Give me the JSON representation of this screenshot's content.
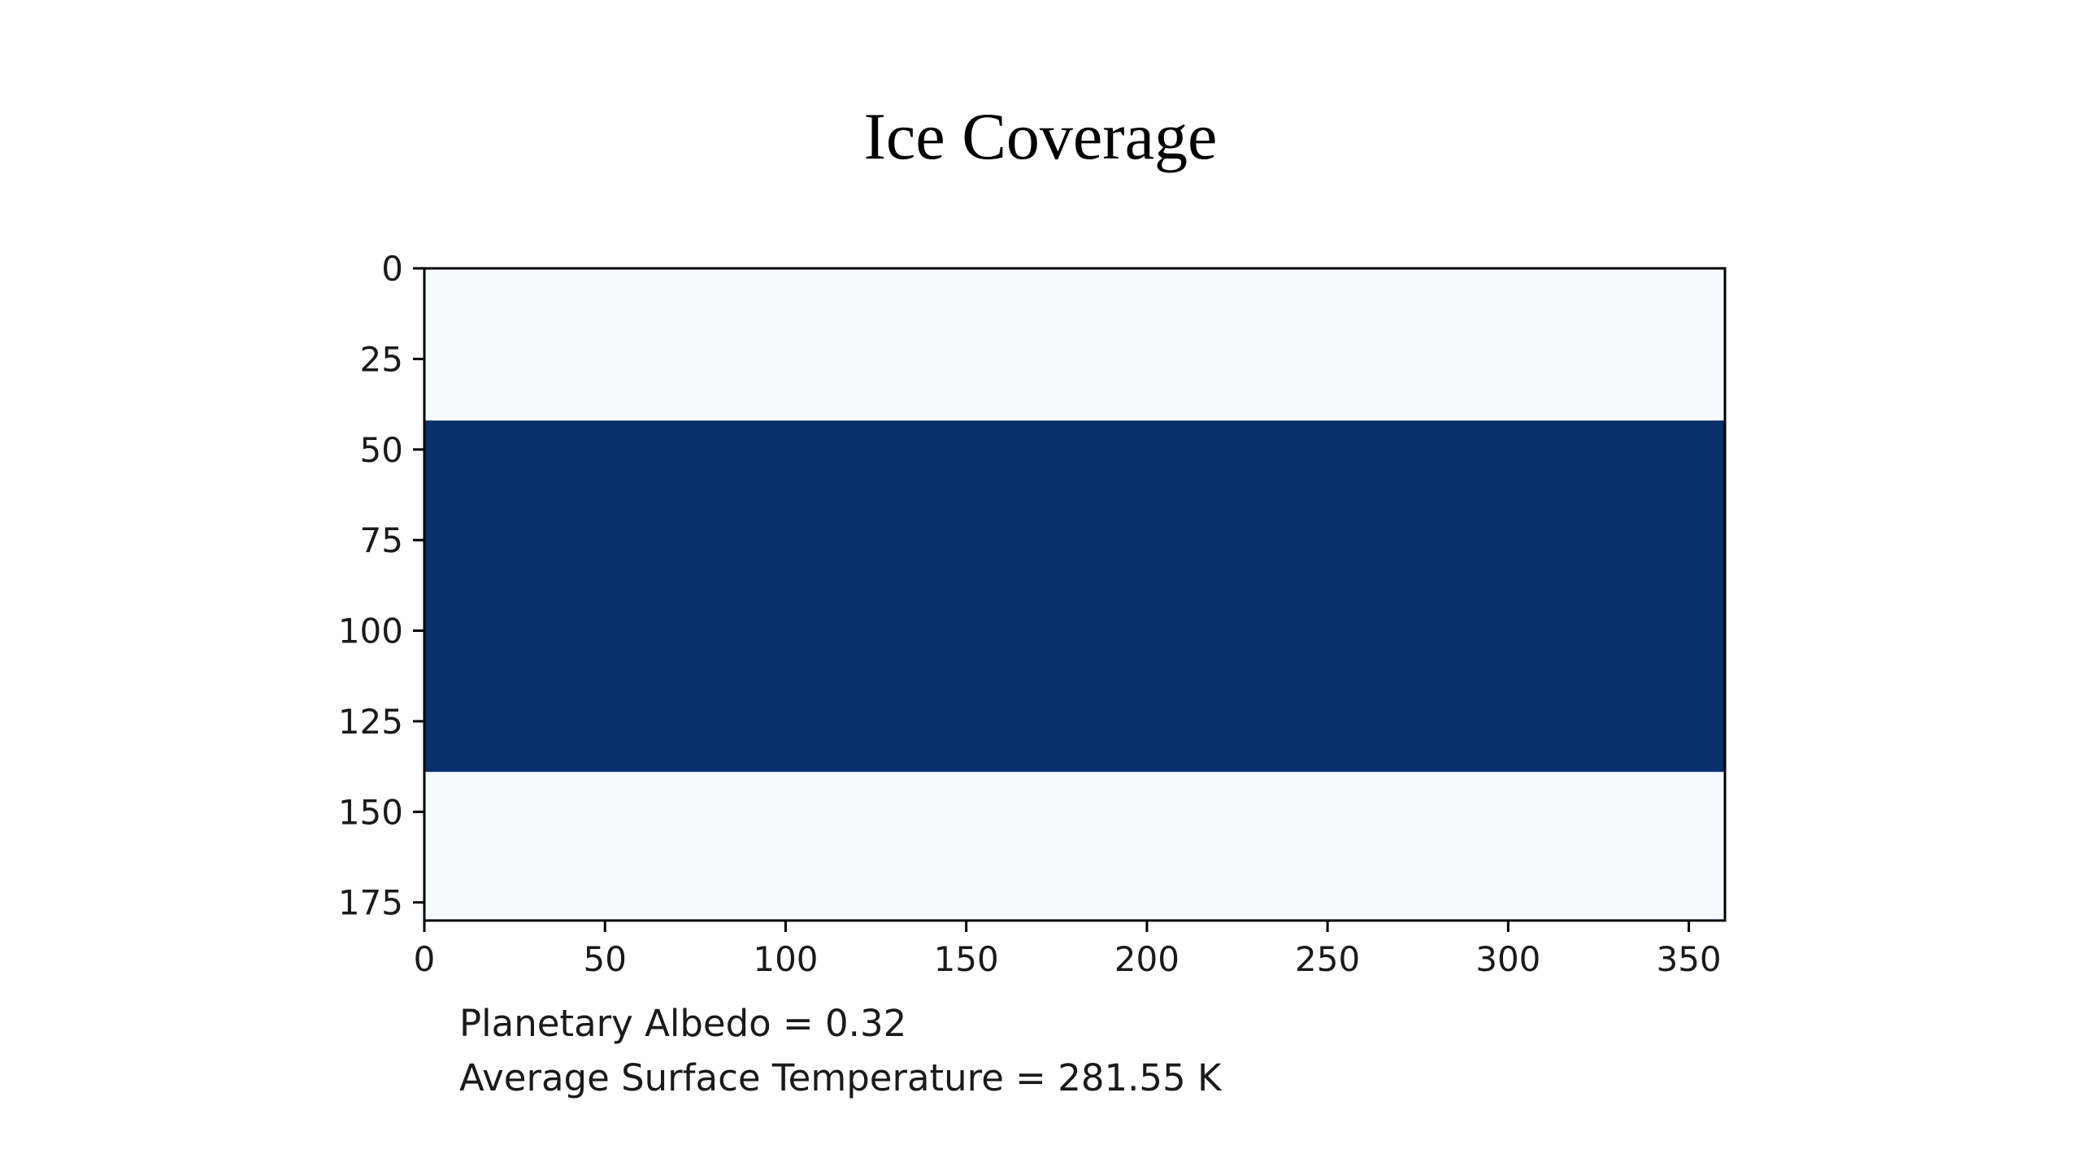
{
  "chart_data": {
    "type": "heatmap",
    "title": "Ice Coverage",
    "xlabel": "",
    "ylabel": "",
    "xlim": [
      0,
      360
    ],
    "ylim": [
      180,
      0
    ],
    "y_axis_inverted": true,
    "x_ticks": [
      0,
      50,
      100,
      150,
      200,
      250,
      300,
      350
    ],
    "y_ticks": [
      0,
      25,
      50,
      75,
      100,
      125,
      150,
      175
    ],
    "colormap": "Blues",
    "bands": [
      {
        "y_start": 0,
        "y_end": 42,
        "x_start": 0,
        "x_end": 360,
        "value": 0,
        "color": "#f7fbff"
      },
      {
        "y_start": 42,
        "y_end": 139,
        "x_start": 0,
        "x_end": 360,
        "value": 1,
        "color": "#08306b"
      },
      {
        "y_start": 139,
        "y_end": 180,
        "x_start": 0,
        "x_end": 360,
        "value": 0,
        "color": "#f7fbff"
      }
    ],
    "grid": false,
    "legend": "none",
    "annotations": [
      "Planetary Albedo = 0.32",
      "Average Surface Temperature = 281.55 K"
    ]
  }
}
